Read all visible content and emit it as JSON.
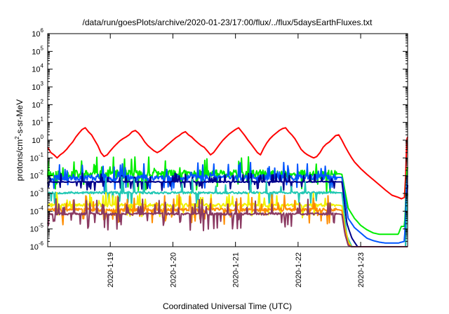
{
  "chart_data": {
    "type": "line",
    "title": "/data/run/goesPlots/archive/2020-01-23/17:00/flux/../flux/5daysEarthFluxes.txt",
    "xlabel": "Coordinated Universal Time (UTC)",
    "ylabel": {
      "base": "protons/cm",
      "sup": "2",
      "rest": "-s-sr-MeV"
    },
    "yscale": "log",
    "ylim": [
      1e-06,
      1000000.0
    ],
    "xlim": [
      0.0,
      5.75
    ],
    "x_ticks": [
      {
        "x": 1.0,
        "label": "2020-1-19"
      },
      {
        "x": 2.0,
        "label": "2020-1-20"
      },
      {
        "x": 3.0,
        "label": "2020-1-21"
      },
      {
        "x": 4.0,
        "label": "2020-1-22"
      },
      {
        "x": 5.0,
        "label": "2020-1-23"
      }
    ],
    "y_ticks": [
      {
        "exp": -6
      },
      {
        "exp": -5
      },
      {
        "exp": -4
      },
      {
        "exp": -3
      },
      {
        "exp": -2
      },
      {
        "exp": -1
      },
      {
        "exp": 0
      },
      {
        "exp": 1
      },
      {
        "exp": 2
      },
      {
        "exp": 3
      },
      {
        "exp": 4
      },
      {
        "exp": 5
      },
      {
        "exp": 6
      }
    ],
    "grid": false,
    "legend": "none",
    "series": [
      {
        "color": "#ff0000",
        "kind": "red",
        "x": [
          0.0,
          0.05,
          0.1,
          0.15,
          0.2,
          0.25,
          0.3,
          0.35,
          0.4,
          0.45,
          0.5,
          0.55,
          0.6,
          0.65,
          0.7,
          0.75,
          0.8,
          0.85,
          0.9,
          0.95,
          1.0,
          1.05,
          1.1,
          1.15,
          1.2,
          1.25,
          1.3,
          1.35,
          1.4,
          1.45,
          1.5,
          1.55,
          1.6,
          1.65,
          1.7,
          1.75,
          1.8,
          1.85,
          1.9,
          1.95,
          2.0,
          2.05,
          2.1,
          2.15,
          2.2,
          2.25,
          2.3,
          2.35,
          2.4,
          2.45,
          2.5,
          2.55,
          2.6,
          2.65,
          2.7,
          2.75,
          2.8,
          2.85,
          2.9,
          2.95,
          3.0,
          3.05,
          3.1,
          3.15,
          3.2,
          3.25,
          3.3,
          3.35,
          3.4,
          3.45,
          3.5,
          3.55,
          3.6,
          3.65,
          3.7,
          3.75,
          3.8,
          3.85,
          3.9,
          3.95,
          4.0,
          4.05,
          4.1,
          4.15,
          4.2,
          4.25,
          4.3,
          4.35,
          4.4,
          4.45,
          4.5,
          4.55,
          4.6,
          4.65,
          4.7,
          4.75,
          4.8,
          4.85,
          4.9,
          5.0,
          5.1,
          5.2,
          5.3,
          5.4,
          5.5,
          5.6,
          5.65,
          5.7,
          5.72,
          5.73,
          5.74,
          5.75
        ],
        "y": [
          0.4,
          0.2,
          0.15,
          0.1,
          0.15,
          0.2,
          0.3,
          0.5,
          0.8,
          1.5,
          2.5,
          4.0,
          5.0,
          3.0,
          2.0,
          1.0,
          0.5,
          0.2,
          0.12,
          0.15,
          0.25,
          0.4,
          0.6,
          0.9,
          1.2,
          1.5,
          2.0,
          3.0,
          3.5,
          2.5,
          1.5,
          0.8,
          0.5,
          0.35,
          0.25,
          0.2,
          0.25,
          0.35,
          0.5,
          0.7,
          1.0,
          1.4,
          1.8,
          2.5,
          3.0,
          2.0,
          1.5,
          1.0,
          0.7,
          0.5,
          0.4,
          0.25,
          0.15,
          0.2,
          0.35,
          0.6,
          1.0,
          1.5,
          2.2,
          3.0,
          4.0,
          5.0,
          3.0,
          1.8,
          1.0,
          0.6,
          0.35,
          0.2,
          0.15,
          0.35,
          0.7,
          1.2,
          1.8,
          2.5,
          3.5,
          4.5,
          5.0,
          3.0,
          2.0,
          1.2,
          0.6,
          0.3,
          0.2,
          0.15,
          0.12,
          0.1,
          0.12,
          0.2,
          0.4,
          0.6,
          0.8,
          1.2,
          1.8,
          2.0,
          1.0,
          0.45,
          0.22,
          0.11,
          0.06,
          0.025,
          0.012,
          0.006,
          0.003,
          0.0015,
          0.0008,
          0.0006,
          0.0005,
          0.0006,
          0.01,
          0.2,
          1.2,
          1.5
        ]
      },
      {
        "color": "#00ee00",
        "kind": "green",
        "x": [
          0.0,
          4.6,
          4.65,
          4.7,
          4.8,
          4.9,
          5.0,
          5.1,
          5.2,
          5.3,
          5.4,
          5.5,
          5.6,
          5.65,
          5.7,
          5.72,
          5.73,
          5.74,
          5.75
        ],
        "y": [
          0.012,
          0.012,
          0.013,
          0.012,
          0.00015,
          4e-05,
          1.6e-05,
          9e-06,
          6e-06,
          5e-06,
          5e-06,
          5e-06,
          5e-06,
          1.4e-05,
          1.4e-05,
          0.0003,
          0.007,
          0.02,
          0.03
        ],
        "noise": {
          "seed": 11,
          "amp": 0.8,
          "spike": 0.12,
          "spike_amp": 1.0
        }
      },
      {
        "color": "#0055ff",
        "kind": "blue",
        "x": [
          0.0,
          4.6,
          4.65,
          4.7,
          4.8,
          4.9,
          5.0,
          5.1,
          5.2,
          5.3,
          5.4,
          5.5,
          5.6,
          5.65,
          5.7,
          5.72,
          5.73,
          5.74,
          5.75
        ],
        "y": [
          0.008,
          0.008,
          0.008,
          0.008,
          4e-05,
          1.2e-05,
          6e-06,
          3e-06,
          2.2e-06,
          1.8e-06,
          1.6e-06,
          1.6e-06,
          1.6e-06,
          1.8e-06,
          2e-06,
          0.0001,
          0.002,
          0.008,
          0.01
        ],
        "noise": {
          "seed": 23,
          "amp": 0.55,
          "spike": 0.1,
          "spike_amp": 0.9
        }
      },
      {
        "color": "#00008b",
        "kind": "navy",
        "x": [
          0.0,
          4.6,
          4.65,
          4.7,
          4.78,
          4.86,
          4.95,
          5.05,
          5.15,
          5.3,
          5.5,
          5.6,
          5.65,
          5.7,
          5.72,
          5.73,
          5.74,
          5.75
        ],
        "y": [
          0.0045,
          0.0045,
          0.0045,
          0.0045,
          2e-05,
          3e-06,
          1e-06,
          1e-06,
          1e-06,
          1e-06,
          1e-06,
          1e-06,
          1e-06,
          1e-06,
          1e-06,
          5e-05,
          0.001,
          0.003
        ],
        "noise": {
          "seed": 37,
          "amp": 0.1,
          "spike": 0.2,
          "spike_amp": 0.55
        }
      },
      {
        "color": "#22c8b4",
        "kind": "teal",
        "x": [
          0.0,
          4.6,
          4.65,
          4.7,
          4.78,
          4.86,
          4.95,
          5.05,
          5.3,
          5.5,
          5.6,
          5.65,
          5.7,
          5.72,
          5.73,
          5.74,
          5.75
        ],
        "y": [
          0.0011,
          0.0011,
          0.0011,
          0.0011,
          4e-06,
          1e-06,
          1e-06,
          1e-06,
          1e-06,
          1e-06,
          1e-06,
          1e-06,
          1e-06,
          1e-06,
          2e-05,
          0.0004,
          0.001
        ],
        "noise": {
          "seed": 53,
          "amp": 0.2,
          "spike": 0.08,
          "spike_amp": 1.0
        }
      },
      {
        "color": "#f0f000",
        "kind": "yellow",
        "x": [
          0.0,
          4.6,
          4.65,
          4.7,
          4.75,
          4.8,
          4.85,
          5.0,
          5.5,
          5.75
        ],
        "y": [
          0.00022,
          0.00022,
          0.00022,
          0.0002,
          1.2e-05,
          2e-06,
          1e-06,
          1e-06,
          1e-06,
          1e-06
        ],
        "noise": {
          "seed": 71,
          "amp": 0.3,
          "spike": 0.15,
          "spike_amp": 0.8
        }
      },
      {
        "color": "#ff8c00",
        "kind": "orange",
        "x": [
          0.0,
          4.6,
          4.65,
          4.7,
          4.75,
          4.8,
          4.85,
          5.0,
          5.5,
          5.75
        ],
        "y": [
          0.00012,
          0.00012,
          0.00012,
          0.00011,
          8e-06,
          1.5e-06,
          1e-06,
          1e-06,
          1e-06,
          1e-06
        ],
        "noise": {
          "seed": 83,
          "amp": 0.3,
          "spike": 0.15,
          "spike_amp": 0.9
        }
      },
      {
        "color": "#8b3a62",
        "kind": "purple",
        "x": [
          0.0,
          4.6,
          4.65,
          4.7,
          4.75,
          4.8,
          4.85,
          5.0,
          5.5,
          5.75
        ],
        "y": [
          7e-05,
          7e-05,
          7e-05,
          6.5e-05,
          5e-06,
          1.2e-06,
          1e-06,
          1e-06,
          1e-06,
          1e-06
        ],
        "noise": {
          "seed": 97,
          "amp": 0.2,
          "spike": 0.15,
          "spike_amp": 1.0
        }
      }
    ]
  }
}
